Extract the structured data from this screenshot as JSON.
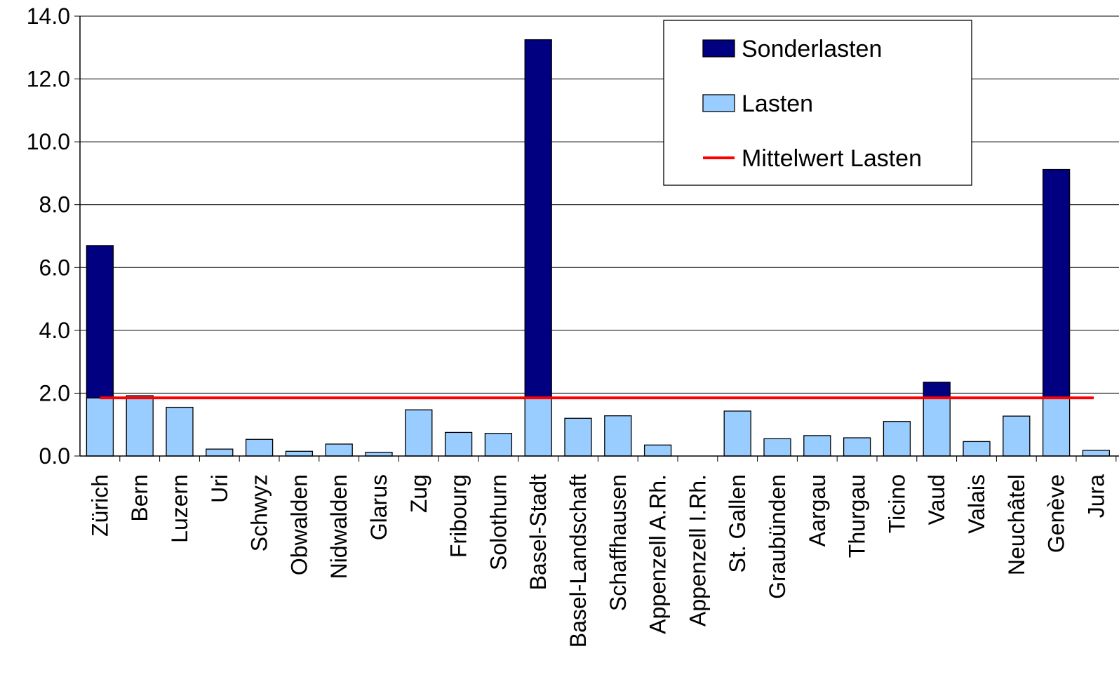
{
  "chart_data": {
    "type": "bar",
    "stacked": true,
    "categories": [
      "Zürich",
      "Bern",
      "Luzern",
      "Uri",
      "Schwyz",
      "Obwalden",
      "Nidwalden",
      "Glarus",
      "Zug",
      "Fribourg",
      "Solothurn",
      "Basel-Stadt",
      "Basel-Landschaft",
      "Schaffhausen",
      "Appenzell A.Rh.",
      "Appenzell I.Rh.",
      "St. Gallen",
      "Graubünden",
      "Aargau",
      "Thurgau",
      "Ticino",
      "Vaud",
      "Valais",
      "Neuchâtel",
      "Genève",
      "Jura"
    ],
    "series": [
      {
        "name": "Lasten",
        "color": "#99ccff",
        "values": [
          1.85,
          1.92,
          1.55,
          0.22,
          0.53,
          0.15,
          0.38,
          0.12,
          1.47,
          0.75,
          0.72,
          1.85,
          1.2,
          1.28,
          0.35,
          0.0,
          1.43,
          0.55,
          0.65,
          0.58,
          1.1,
          1.85,
          0.46,
          1.27,
          1.85,
          0.18
        ]
      },
      {
        "name": "Sonderlasten",
        "color": "#000080",
        "values": [
          4.85,
          0.0,
          0.0,
          0.0,
          0.0,
          0.0,
          0.0,
          0.0,
          0.0,
          0.0,
          0.0,
          11.4,
          0.0,
          0.0,
          0.0,
          0.0,
          0.0,
          0.0,
          0.0,
          0.0,
          0.0,
          0.5,
          0.0,
          0.0,
          7.27,
          0.0
        ]
      }
    ],
    "reference_line": {
      "name": "Mittelwert Lasten",
      "value": 1.85,
      "color": "#ff0000"
    },
    "yticks": [
      "0.0",
      "2.0",
      "4.0",
      "6.0",
      "8.0",
      "10.0",
      "12.0",
      "14.0"
    ],
    "ylim": [
      0,
      14
    ],
    "grid": true,
    "legend_position": "top-right",
    "title": "",
    "xlabel": "",
    "ylabel": ""
  },
  "legend": {
    "items": [
      {
        "label": "Sonderlasten",
        "kind": "box",
        "color": "#000080"
      },
      {
        "label": "Lasten",
        "kind": "box",
        "color": "#99ccff"
      },
      {
        "label": "Mittelwert Lasten",
        "kind": "line",
        "color": "#ff0000"
      }
    ]
  }
}
